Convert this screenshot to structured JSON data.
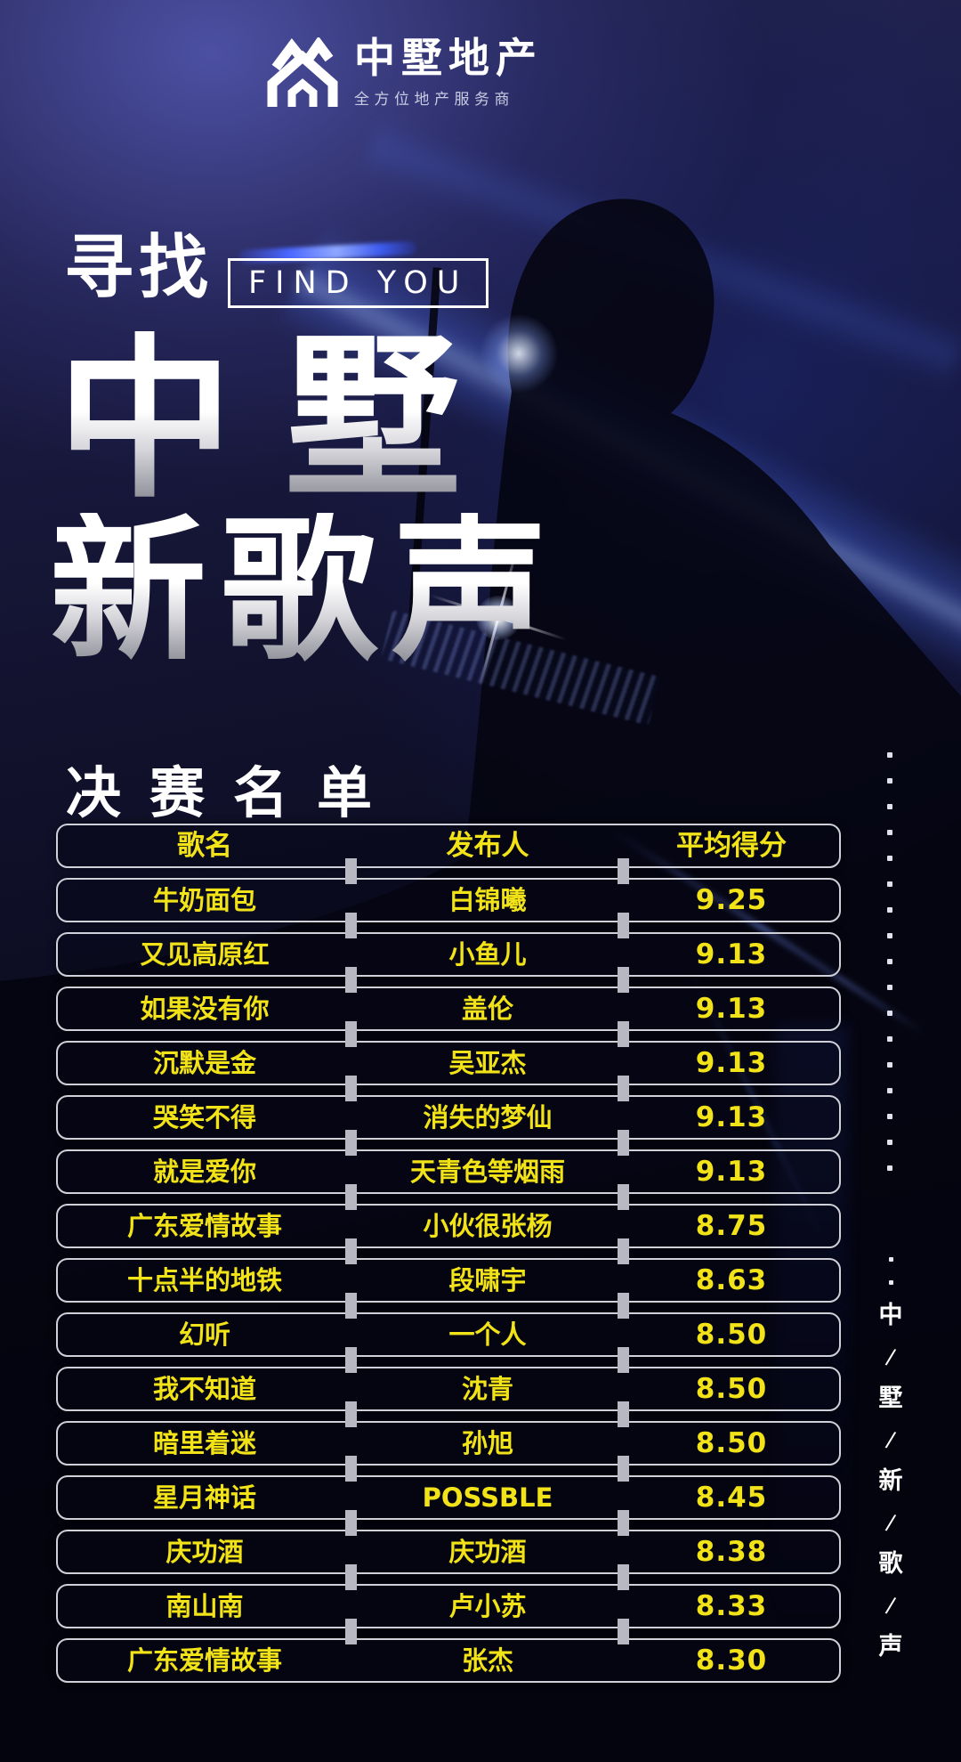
{
  "logo": {
    "name": "中墅地产",
    "tagline": "全方位地产服务商"
  },
  "hero": {
    "kicker_cn": "寻找",
    "kicker_en": "FIND YOU",
    "title_line1": "中墅",
    "title_line2": "新歌声"
  },
  "section": {
    "heading": "决赛名单"
  },
  "table": {
    "headers": [
      "歌名",
      "发布人",
      "平均得分"
    ],
    "rows": [
      [
        "牛奶面包",
        "白锦曦",
        "9.25"
      ],
      [
        "又见高原红",
        "小鱼儿",
        "9.13"
      ],
      [
        "如果没有你",
        "盖伦",
        "9.13"
      ],
      [
        "沉默是金",
        "吴亚杰",
        "9.13"
      ],
      [
        "哭笑不得",
        "消失的梦仙",
        "9.13"
      ],
      [
        "就是爱你",
        "天青色等烟雨",
        "9.13"
      ],
      [
        "广东爱情故事",
        "小伙很张杨",
        "8.75"
      ],
      [
        "十点半的地铁",
        "段啸宇",
        "8.63"
      ],
      [
        "幻听",
        "一个人",
        "8.50"
      ],
      [
        "我不知道",
        "沈青",
        "8.50"
      ],
      [
        "暗里着迷",
        "孙旭",
        "8.50"
      ],
      [
        "星月神话",
        "POSSBLE",
        "8.45"
      ],
      [
        "庆功酒",
        "庆功酒",
        "8.38"
      ],
      [
        "南山南",
        "卢小苏",
        "8.33"
      ],
      [
        "广东爱情故事",
        "张杰",
        "8.30"
      ]
    ]
  },
  "side_rail": {
    "dot_count": 17,
    "leading_dots": 2,
    "separator": "/",
    "chars": [
      "中",
      "墅",
      "新",
      "歌",
      "声"
    ]
  },
  "colors": {
    "accent_yellow": "#f2e318",
    "row_border": "#cfd0d8",
    "connector_gray": "#b7b8c1",
    "background_navy": "#1a1a40",
    "beam_blue": "#5078ff",
    "title_gradient_top": "#ffffff",
    "title_gradient_bottom": "#84848e"
  }
}
